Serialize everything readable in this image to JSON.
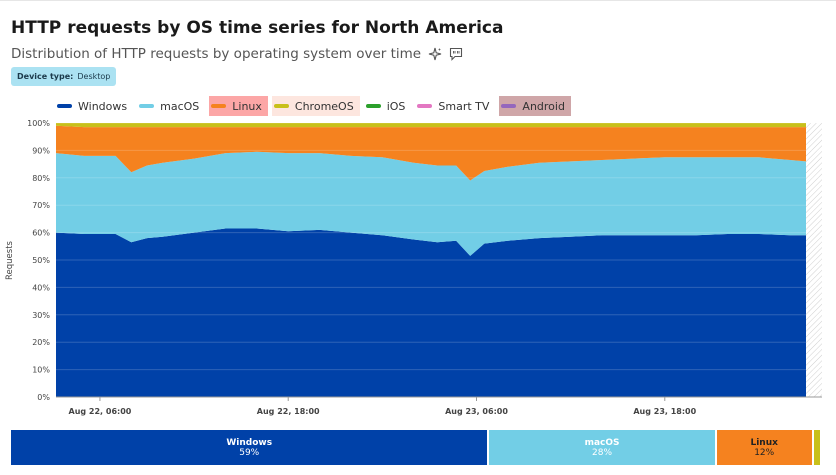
{
  "header": {
    "title": "HTTP requests by OS time series for North America",
    "subtitle": "Distribution of HTTP requests by operating system over time"
  },
  "filter": {
    "label": "Device type:",
    "value": "Desktop"
  },
  "colors": {
    "Windows": "#0041a8",
    "macOS": "#72cee6",
    "Linux": "#f5821f",
    "ChromeOS": "#c8c01b",
    "iOS": "#2ca02c",
    "Smart TV": "#e377c2",
    "Android": "#9467bd"
  },
  "chart_data": {
    "type": "area",
    "stacked": true,
    "ylabel": "Requests",
    "ylim": [
      0,
      100
    ],
    "y_ticks": [
      "0%",
      "10%",
      "20%",
      "30%",
      "40%",
      "50%",
      "60%",
      "70%",
      "80%",
      "90%",
      "100%"
    ],
    "x_ticks": [
      "Aug 22, 06:00",
      "Aug 22, 18:00",
      "Aug 23, 06:00",
      "Aug 23, 18:00"
    ],
    "x_tick_hours": [
      6,
      18,
      30,
      42
    ],
    "x_range_hours": [
      3.2,
      51
    ],
    "grid": true,
    "legend_position": "top",
    "x_hours": [
      3.2,
      5,
      7,
      8,
      9,
      10,
      12,
      14,
      16,
      18,
      20,
      22,
      24,
      26,
      27.5,
      28.7,
      29.6,
      30.5,
      32,
      34,
      36,
      38,
      40,
      42,
      44,
      46,
      48,
      50,
      51
    ],
    "series": [
      {
        "name": "Windows",
        "values": [
          60,
          59.5,
          59.5,
          56.5,
          58,
          58.5,
          60,
          61.5,
          61.5,
          60.5,
          61,
          60,
          59,
          57.5,
          56.5,
          57,
          51.5,
          56,
          57,
          58,
          58.5,
          59,
          59,
          59,
          59,
          59.5,
          59.5,
          59,
          59
        ]
      },
      {
        "name": "macOS",
        "values": [
          29,
          28.5,
          28.5,
          25.5,
          26.5,
          27,
          27,
          27.5,
          28,
          28.5,
          28,
          28,
          28.5,
          28,
          28,
          27.5,
          27.5,
          26.5,
          27,
          27.5,
          27.5,
          27.5,
          28,
          28.5,
          28.5,
          28,
          28,
          27.5,
          27
        ]
      },
      {
        "name": "Linux",
        "values": [
          10,
          10.5,
          10.5,
          16.5,
          14,
          13,
          11.5,
          9.5,
          9,
          9.5,
          9.5,
          10.5,
          11,
          13,
          14,
          14,
          19.5,
          16,
          14.5,
          13,
          12.5,
          12,
          11.5,
          11,
          11,
          11,
          11,
          12,
          12.5
        ]
      },
      {
        "name": "ChromeOS",
        "values": [
          1,
          1.5,
          1.5,
          1.5,
          1.5,
          1.5,
          1.5,
          1.5,
          1.5,
          1.5,
          1.5,
          1.5,
          1.5,
          1.5,
          1.5,
          1.5,
          1.5,
          1.5,
          1.5,
          1.5,
          1.5,
          1.5,
          1.5,
          1.5,
          1.5,
          1.5,
          1.5,
          1.5,
          1.5
        ]
      },
      {
        "name": "iOS",
        "values": [
          0,
          0,
          0,
          0,
          0,
          0,
          0,
          0,
          0,
          0,
          0,
          0,
          0,
          0,
          0,
          0,
          0,
          0,
          0,
          0,
          0,
          0,
          0,
          0,
          0,
          0,
          0,
          0,
          0
        ]
      },
      {
        "name": "Smart TV",
        "values": [
          0,
          0,
          0,
          0,
          0,
          0,
          0,
          0,
          0,
          0,
          0,
          0,
          0,
          0,
          0,
          0,
          0,
          0,
          0,
          0,
          0,
          0,
          0,
          0,
          0,
          0,
          0,
          0,
          0
        ]
      },
      {
        "name": "Android",
        "values": [
          0,
          0,
          0,
          0,
          0,
          0,
          0,
          0,
          0,
          0,
          0,
          0,
          0,
          0,
          0,
          0,
          0,
          0,
          0,
          0,
          0,
          0,
          0,
          0,
          0,
          0,
          0,
          0,
          0
        ]
      }
    ],
    "distribution": [
      {
        "name": "Windows",
        "label": "59%",
        "value": 59
      },
      {
        "name": "macOS",
        "label": "28%",
        "value": 28
      },
      {
        "name": "Linux",
        "label": "12%",
        "value": 12
      },
      {
        "name": "ChromeOS",
        "label": "",
        "value": 1
      }
    ]
  }
}
